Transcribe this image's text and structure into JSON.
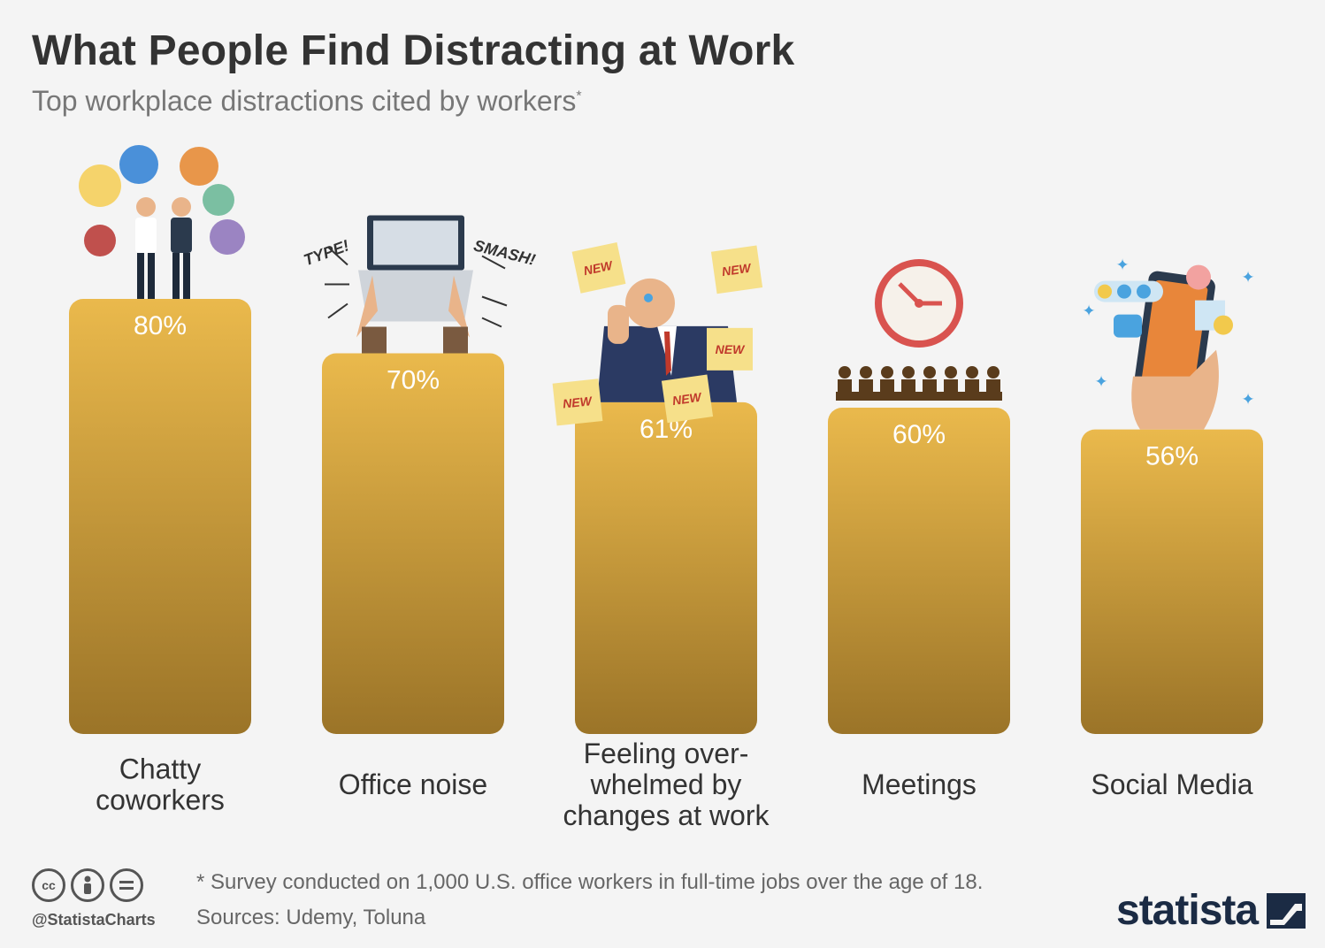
{
  "title": "What People Find Distracting at Work",
  "subtitle": "Top workplace distractions cited by workers",
  "subtitle_mark": "*",
  "footnote": "* Survey conducted on 1,000 U.S. office workers in full-time jobs over the age of 18.",
  "sources": "Sources: Udemy, Toluna",
  "handle": "@StatistaCharts",
  "license_icons": [
    "cc-icon",
    "by-icon",
    "nd-icon"
  ],
  "brand": "statista",
  "colors": {
    "bar_top": "#eab94c",
    "bar_bottom": "#9b7428",
    "bar_label": "#ffffff"
  },
  "chart_data": {
    "type": "bar",
    "categories": [
      [
        "Chatty",
        "coworkers"
      ],
      [
        "Office noise"
      ],
      [
        "Feeling over-",
        "whelmed by",
        "changes at work"
      ],
      [
        "Meetings"
      ],
      [
        "Social Media"
      ]
    ],
    "values": [
      80,
      70,
      61,
      60,
      56
    ],
    "data_labels": [
      "80%",
      "70%",
      "61%",
      "60%",
      "56%"
    ],
    "unit": "%",
    "ylim": [
      0,
      100
    ],
    "grid": false,
    "icons": [
      "chatty-coworkers-icon",
      "laptop-typing-icon",
      "overwhelmed-worker-icon",
      "meeting-clock-icon",
      "smartphone-social-icon"
    ],
    "icon_texts": {
      "laptop": [
        "TYPE!",
        "SMASH!"
      ],
      "overwhelmed": [
        "NEW",
        "NEW",
        "NEW",
        "NEW",
        "NEW"
      ]
    }
  }
}
